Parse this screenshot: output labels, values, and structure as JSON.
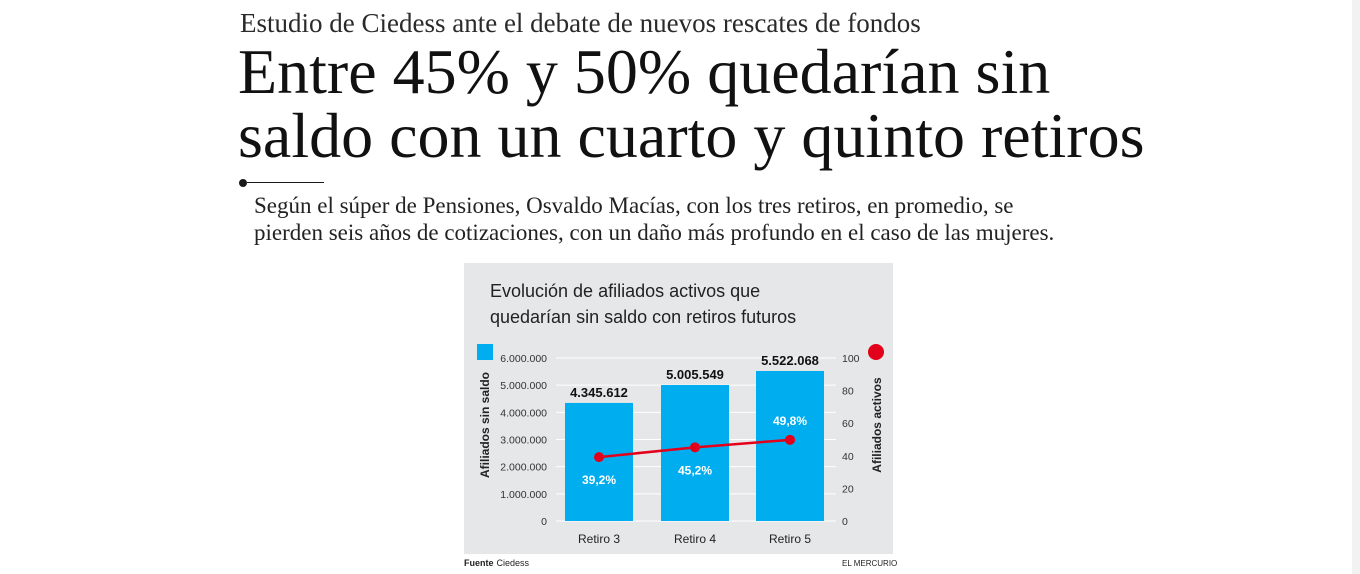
{
  "article": {
    "kicker": "Estudio de Ciedess ante el debate de nuevos rescates de fondos",
    "headline_line1": "Entre 45% y 50% quedarían sin",
    "headline_line2": "saldo con un cuarto y quinto retiros",
    "deck_line1": "Según el súper de Pensiones, Osvaldo Macías, con los tres retiros, en promedio, se",
    "deck_line2": "pierden seis años de cotizaciones, con un daño más profundo en el caso de las mujeres."
  },
  "chart_data": {
    "type": "bar",
    "title_line1": "Evolución de afiliados activos que",
    "title_line2": "quedarían sin saldo con retiros futuros",
    "categories": [
      "Retiro 3",
      "Retiro 4",
      "Retiro 5"
    ],
    "series": [
      {
        "type": "bar",
        "axis": "left",
        "values": [
          4345612,
          5005549,
          5522068
        ],
        "labels": [
          "4.345.612",
          "5.005.549",
          "5.522.068"
        ],
        "color": "#00aeef"
      },
      {
        "type": "line",
        "axis": "right",
        "values": [
          39.2,
          45.2,
          49.8
        ],
        "labels": [
          "39,2%",
          "45,2%",
          "49,8%"
        ],
        "color": "#e3001b"
      }
    ],
    "ylabel_left": "Afiliados sin saldo",
    "ylabel_right": "Afiliados activos",
    "ylim_left": [
      0,
      6000000
    ],
    "ylim_right": [
      0,
      100
    ],
    "yticks_left": [
      "0",
      "1.000.000",
      "2.000.000",
      "3.000.000",
      "4.000.000",
      "5.000.000",
      "6.000.000"
    ],
    "yticks_right": [
      "0",
      "20",
      "40",
      "60",
      "80",
      "100"
    ],
    "grid": true,
    "legend": "top-left square (bars), top-right dot (line)"
  },
  "footer": {
    "source_label": "Fuente",
    "source_value": "Ciedess",
    "publication": "EL MERCURIO"
  }
}
